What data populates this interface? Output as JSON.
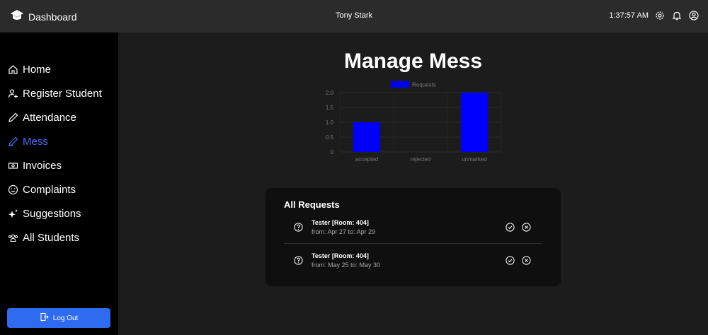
{
  "header": {
    "brand": "Dashboard",
    "user": "Tony Stark",
    "time": "1:37:57 AM"
  },
  "sidebar": {
    "items": [
      {
        "label": "Home",
        "icon": "home-icon"
      },
      {
        "label": "Register Student",
        "icon": "user-plus-icon"
      },
      {
        "label": "Attendance",
        "icon": "pencil-icon"
      },
      {
        "label": "Mess",
        "icon": "brush-icon",
        "active": true
      },
      {
        "label": "Invoices",
        "icon": "cash-icon"
      },
      {
        "label": "Complaints",
        "icon": "frown-icon"
      },
      {
        "label": "Suggestions",
        "icon": "sparkles-icon"
      },
      {
        "label": "All Students",
        "icon": "users-icon"
      }
    ],
    "logout": "Log Out"
  },
  "main": {
    "title": "Manage Mess"
  },
  "chart_data": {
    "type": "bar",
    "categories": [
      "accepted",
      "rejected",
      "unmarked"
    ],
    "series": [
      {
        "name": "Requests",
        "values": [
          1,
          0,
          2
        ]
      }
    ],
    "ylim": [
      0,
      2
    ],
    "yticks": [
      "2.0",
      "1.5",
      "1.0",
      "0.5",
      "0"
    ],
    "legend": "top",
    "color": "#0000ff"
  },
  "requests": {
    "title": "All Requests",
    "items": [
      {
        "name": "Tester [Room: 404]",
        "dates": "from: Apr 27 to: Apr 29"
      },
      {
        "name": "Tester [Room: 404]",
        "dates": "from: May 25 to: May 30"
      }
    ]
  },
  "colors": {
    "accent": "#4a6cf7",
    "logout": "#2f6bf0",
    "bar": "#0000ff"
  }
}
